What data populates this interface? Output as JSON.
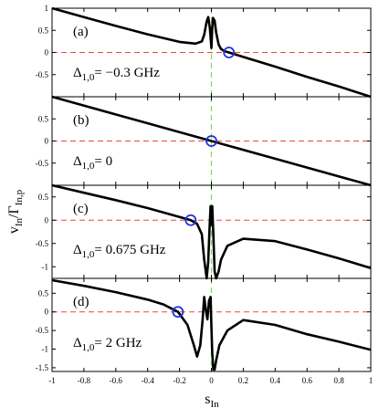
{
  "chart_data": {
    "type": "line",
    "xlabel": "s",
    "xlabel_sub": "In",
    "ylabel": "v",
    "ylabel_sub": "In",
    "ylabel_denominator": "Γ",
    "ylabel_denominator_sub": "In,p",
    "xlim": [
      -1,
      1
    ],
    "x_ticks": [
      "-1",
      "-0.8",
      "-0.6",
      "-0.4",
      "-0.2",
      "0",
      "0.2",
      "0.4",
      "0.6",
      "0.8",
      "1"
    ],
    "styles": {
      "curve_color": "#000000",
      "zero_line_color": "#e8483c",
      "vertical_line_color": "#7ddc5a",
      "marker_color": "#2233dd"
    },
    "panels": [
      {
        "label": "(a)",
        "delta_symbol": "Δ",
        "delta_sub": "1,0",
        "delta_value": "= −0.3 GHz",
        "ylim": [
          -1,
          1
        ],
        "y_ticks": [
          "1",
          "0.5",
          "0",
          "-0.5"
        ],
        "y_tick_values": [
          1,
          0.5,
          0,
          -0.5
        ],
        "marker": {
          "x": 0.11,
          "y": 0
        },
        "series": {
          "x": [
            -1.0,
            -0.8,
            -0.6,
            -0.4,
            -0.2,
            -0.1,
            -0.06,
            -0.045,
            -0.03,
            -0.02,
            -0.01,
            0.0,
            0.005,
            0.01,
            0.02,
            0.03,
            0.045,
            0.06,
            0.08,
            0.11,
            0.2,
            0.4,
            0.6,
            0.8,
            1.0
          ],
          "y": [
            1.0,
            0.8,
            0.6,
            0.41,
            0.24,
            0.2,
            0.25,
            0.4,
            0.7,
            0.8,
            0.55,
            0.1,
            0.55,
            0.78,
            0.72,
            0.45,
            0.18,
            0.08,
            0.03,
            0.0,
            -0.1,
            -0.32,
            -0.55,
            -0.77,
            -1.0
          ]
        }
      },
      {
        "label": "(b)",
        "delta_symbol": "Δ",
        "delta_sub": "1,0",
        "delta_value": "= 0",
        "ylim": [
          -1,
          1
        ],
        "y_ticks": [
          "0.5",
          "0",
          "-0.5"
        ],
        "y_tick_values": [
          0.5,
          0,
          -0.5
        ],
        "marker": {
          "x": 0.0,
          "y": 0
        },
        "series": {
          "x": [
            -1.0,
            -0.5,
            0.0,
            0.5,
            1.0
          ],
          "y": [
            1.0,
            0.5,
            0.0,
            -0.5,
            -1.0
          ]
        }
      },
      {
        "label": "(c)",
        "delta_symbol": "Δ",
        "delta_sub": "1,0",
        "delta_value": "= 0.675 GHz",
        "ylim": [
          -1.25,
          0.75
        ],
        "y_ticks": [
          "0.5",
          "0",
          "-0.5",
          "-1"
        ],
        "y_tick_values": [
          0.5,
          0,
          -0.5,
          -1
        ],
        "marker": {
          "x": -0.13,
          "y": 0
        },
        "series": {
          "x": [
            -1.0,
            -0.8,
            -0.6,
            -0.4,
            -0.2,
            -0.13,
            -0.09,
            -0.06,
            -0.045,
            -0.03,
            -0.02,
            -0.012,
            -0.005,
            0.0,
            0.005,
            0.012,
            0.02,
            0.03,
            0.045,
            0.06,
            0.1,
            0.2,
            0.4,
            0.6,
            0.8,
            1.0
          ],
          "y": [
            0.75,
            0.59,
            0.43,
            0.26,
            0.07,
            0.0,
            -0.08,
            -0.3,
            -0.85,
            -1.25,
            -0.9,
            -0.2,
            0.3,
            -0.1,
            0.3,
            -0.3,
            -1.1,
            -1.25,
            -1.1,
            -0.85,
            -0.55,
            -0.4,
            -0.45,
            -0.63,
            -0.82,
            -1.03
          ]
        }
      },
      {
        "label": "(d)",
        "delta_symbol": "Δ",
        "delta_sub": "1,0",
        "delta_value": "= 2 GHz",
        "ylim": [
          -1.6,
          0.9
        ],
        "y_ticks": [
          "0.5",
          "0",
          "-0.5",
          "-1",
          "-1.5"
        ],
        "y_tick_values": [
          0.5,
          0,
          -0.5,
          -1,
          -1.5
        ],
        "marker": {
          "x": -0.21,
          "y": 0
        },
        "series": {
          "x": [
            -1.0,
            -0.8,
            -0.6,
            -0.4,
            -0.3,
            -0.21,
            -0.15,
            -0.11,
            -0.09,
            -0.07,
            -0.055,
            -0.045,
            -0.035,
            -0.025,
            -0.015,
            -0.005,
            0.0,
            0.005,
            0.012,
            0.02,
            0.03,
            0.05,
            0.1,
            0.2,
            0.4,
            0.6,
            0.8,
            1.0
          ],
          "y": [
            0.85,
            0.7,
            0.53,
            0.33,
            0.2,
            0.0,
            -0.35,
            -0.9,
            -1.2,
            -0.9,
            -0.2,
            0.4,
            0.05,
            -0.2,
            0.3,
            0.4,
            -0.4,
            -1.1,
            -1.55,
            -1.55,
            -1.3,
            -0.9,
            -0.5,
            -0.22,
            -0.35,
            -0.6,
            -0.8,
            -1.02
          ]
        }
      }
    ]
  }
}
